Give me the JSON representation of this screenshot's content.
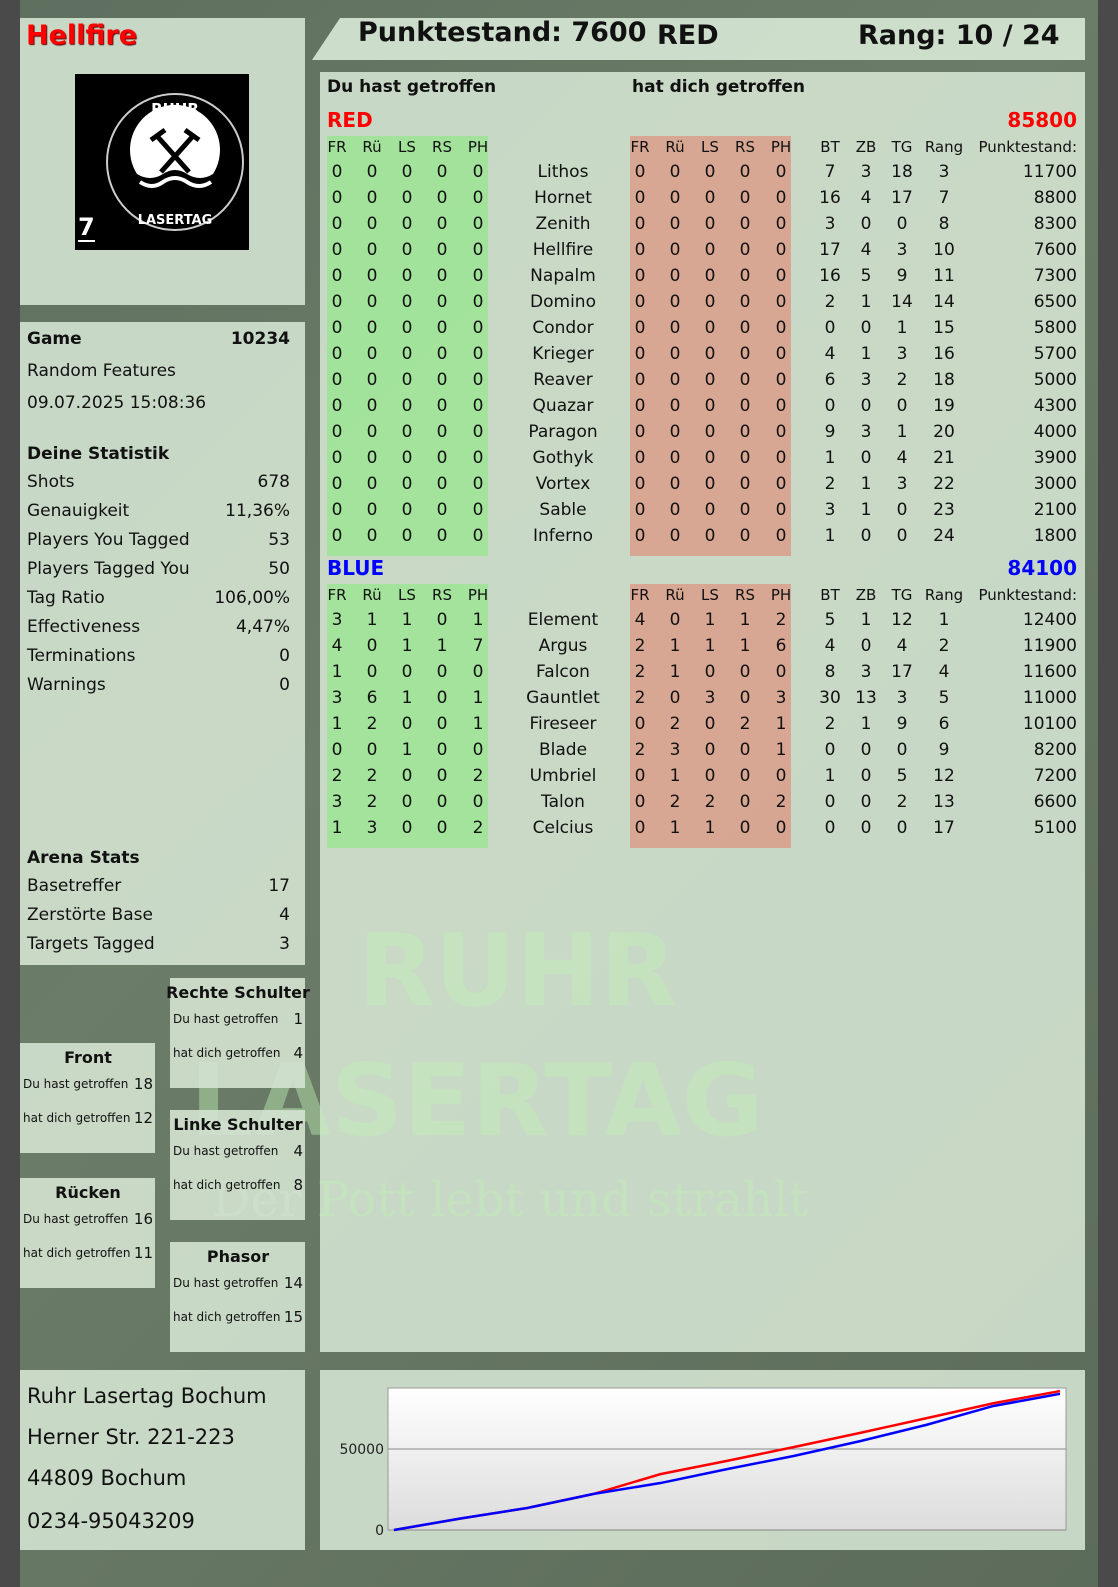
{
  "player": {
    "name": "Hellfire",
    "team_number": "7",
    "logo_text_top": "RUHR",
    "logo_text_bottom": "LASERTAG"
  },
  "header": {
    "score_label": "Punktestand: 7600",
    "team": "RED",
    "rank_label": "Rang: 10 / 24"
  },
  "game": {
    "label": "Game",
    "id": "10234",
    "mode": "Random Features",
    "datetime": "09.07.2025 15:08:36"
  },
  "stats": {
    "title": "Deine Statistik",
    "rows": [
      {
        "label": "Shots",
        "value": "678"
      },
      {
        "label": "Genauigkeit",
        "value": "11,36%"
      },
      {
        "label": "Players You Tagged",
        "value": "53"
      },
      {
        "label": "Players Tagged You",
        "value": "50"
      },
      {
        "label": "Tag Ratio",
        "value": "106,00%"
      },
      {
        "label": "Effectiveness",
        "value": "4,47%"
      },
      {
        "label": "Terminations",
        "value": "0"
      },
      {
        "label": "Warnings",
        "value": "0"
      }
    ]
  },
  "arena": {
    "title": "Arena Stats",
    "rows": [
      {
        "label": "Basetreffer",
        "value": "17"
      },
      {
        "label": "Zerstörte Base",
        "value": "4"
      },
      {
        "label": "Targets Tagged",
        "value": "3"
      }
    ]
  },
  "zones": [
    {
      "title": "Rechte Schulter",
      "you_hit_label": "Du hast getroffen",
      "you_hit": "1",
      "hit_you_label": "hat dich getroffen",
      "hit_you": "4"
    },
    {
      "title": "Front",
      "you_hit_label": "Du hast getroffen",
      "you_hit": "18",
      "hit_you_label": "hat dich getroffen",
      "hit_you": "12"
    },
    {
      "title": "Linke Schulter",
      "you_hit_label": "Du hast getroffen",
      "you_hit": "4",
      "hit_you_label": "hat dich getroffen",
      "hit_you": "8"
    },
    {
      "title": "Rücken",
      "you_hit_label": "Du hast getroffen",
      "you_hit": "16",
      "hit_you_label": "hat dich getroffen",
      "hit_you": "11"
    },
    {
      "title": "Phasor",
      "you_hit_label": "Du hast getroffen",
      "you_hit": "14",
      "hit_you_label": "hat dich getroffen",
      "hit_you": "15"
    }
  ],
  "address": {
    "line1": "Ruhr Lasertag Bochum",
    "line2": "Herner Str. 221-223",
    "line3": "44809 Bochum",
    "phone": "0234-95043209"
  },
  "table": {
    "you_hit_title": "Du hast getroffen",
    "hit_you_title": "hat dich getroffen",
    "hit_columns": [
      "FR",
      "Rü",
      "LS",
      "RS",
      "PH"
    ],
    "stat_columns": [
      "BT",
      "ZB",
      "TG",
      "Rang",
      "Punktestand:"
    ],
    "teams": [
      {
        "name": "RED",
        "total": "85800",
        "color": "#ff0000",
        "players": [
          {
            "name": "Lithos",
            "you_hit": [
              "0",
              "0",
              "0",
              "0",
              "0"
            ],
            "hit_you": [
              "0",
              "0",
              "0",
              "0",
              "0"
            ],
            "stats": [
              "7",
              "3",
              "18",
              "3",
              "11700"
            ]
          },
          {
            "name": "Hornet",
            "you_hit": [
              "0",
              "0",
              "0",
              "0",
              "0"
            ],
            "hit_you": [
              "0",
              "0",
              "0",
              "0",
              "0"
            ],
            "stats": [
              "16",
              "4",
              "17",
              "7",
              "8800"
            ]
          },
          {
            "name": "Zenith",
            "you_hit": [
              "0",
              "0",
              "0",
              "0",
              "0"
            ],
            "hit_you": [
              "0",
              "0",
              "0",
              "0",
              "0"
            ],
            "stats": [
              "3",
              "0",
              "0",
              "8",
              "8300"
            ]
          },
          {
            "name": "Hellfire",
            "you_hit": [
              "0",
              "0",
              "0",
              "0",
              "0"
            ],
            "hit_you": [
              "0",
              "0",
              "0",
              "0",
              "0"
            ],
            "stats": [
              "17",
              "4",
              "3",
              "10",
              "7600"
            ]
          },
          {
            "name": "Napalm",
            "you_hit": [
              "0",
              "0",
              "0",
              "0",
              "0"
            ],
            "hit_you": [
              "0",
              "0",
              "0",
              "0",
              "0"
            ],
            "stats": [
              "16",
              "5",
              "9",
              "11",
              "7300"
            ]
          },
          {
            "name": "Domino",
            "you_hit": [
              "0",
              "0",
              "0",
              "0",
              "0"
            ],
            "hit_you": [
              "0",
              "0",
              "0",
              "0",
              "0"
            ],
            "stats": [
              "2",
              "1",
              "14",
              "14",
              "6500"
            ]
          },
          {
            "name": "Condor",
            "you_hit": [
              "0",
              "0",
              "0",
              "0",
              "0"
            ],
            "hit_you": [
              "0",
              "0",
              "0",
              "0",
              "0"
            ],
            "stats": [
              "0",
              "0",
              "1",
              "15",
              "5800"
            ]
          },
          {
            "name": "Krieger",
            "you_hit": [
              "0",
              "0",
              "0",
              "0",
              "0"
            ],
            "hit_you": [
              "0",
              "0",
              "0",
              "0",
              "0"
            ],
            "stats": [
              "4",
              "1",
              "3",
              "16",
              "5700"
            ]
          },
          {
            "name": "Reaver",
            "you_hit": [
              "0",
              "0",
              "0",
              "0",
              "0"
            ],
            "hit_you": [
              "0",
              "0",
              "0",
              "0",
              "0"
            ],
            "stats": [
              "6",
              "3",
              "2",
              "18",
              "5000"
            ]
          },
          {
            "name": "Quazar",
            "you_hit": [
              "0",
              "0",
              "0",
              "0",
              "0"
            ],
            "hit_you": [
              "0",
              "0",
              "0",
              "0",
              "0"
            ],
            "stats": [
              "0",
              "0",
              "0",
              "19",
              "4300"
            ]
          },
          {
            "name": "Paragon",
            "you_hit": [
              "0",
              "0",
              "0",
              "0",
              "0"
            ],
            "hit_you": [
              "0",
              "0",
              "0",
              "0",
              "0"
            ],
            "stats": [
              "9",
              "3",
              "1",
              "20",
              "4000"
            ]
          },
          {
            "name": "Gothyk",
            "you_hit": [
              "0",
              "0",
              "0",
              "0",
              "0"
            ],
            "hit_you": [
              "0",
              "0",
              "0",
              "0",
              "0"
            ],
            "stats": [
              "1",
              "0",
              "4",
              "21",
              "3900"
            ]
          },
          {
            "name": "Vortex",
            "you_hit": [
              "0",
              "0",
              "0",
              "0",
              "0"
            ],
            "hit_you": [
              "0",
              "0",
              "0",
              "0",
              "0"
            ],
            "stats": [
              "2",
              "1",
              "3",
              "22",
              "3000"
            ]
          },
          {
            "name": "Sable",
            "you_hit": [
              "0",
              "0",
              "0",
              "0",
              "0"
            ],
            "hit_you": [
              "0",
              "0",
              "0",
              "0",
              "0"
            ],
            "stats": [
              "3",
              "1",
              "0",
              "23",
              "2100"
            ]
          },
          {
            "name": "Inferno",
            "you_hit": [
              "0",
              "0",
              "0",
              "0",
              "0"
            ],
            "hit_you": [
              "0",
              "0",
              "0",
              "0",
              "0"
            ],
            "stats": [
              "1",
              "0",
              "0",
              "24",
              "1800"
            ]
          }
        ]
      },
      {
        "name": "BLUE",
        "total": "84100",
        "color": "#0000ff",
        "players": [
          {
            "name": "Element",
            "you_hit": [
              "3",
              "1",
              "1",
              "0",
              "1"
            ],
            "hit_you": [
              "4",
              "0",
              "1",
              "1",
              "2"
            ],
            "stats": [
              "5",
              "1",
              "12",
              "1",
              "12400"
            ]
          },
          {
            "name": "Argus",
            "you_hit": [
              "4",
              "0",
              "1",
              "1",
              "7"
            ],
            "hit_you": [
              "2",
              "1",
              "1",
              "1",
              "6"
            ],
            "stats": [
              "4",
              "0",
              "4",
              "2",
              "11900"
            ]
          },
          {
            "name": "Falcon",
            "you_hit": [
              "1",
              "0",
              "0",
              "0",
              "0"
            ],
            "hit_you": [
              "2",
              "1",
              "0",
              "0",
              "0"
            ],
            "stats": [
              "8",
              "3",
              "17",
              "4",
              "11600"
            ]
          },
          {
            "name": "Gauntlet",
            "you_hit": [
              "3",
              "6",
              "1",
              "0",
              "1"
            ],
            "hit_you": [
              "2",
              "0",
              "3",
              "0",
              "3"
            ],
            "stats": [
              "30",
              "13",
              "3",
              "5",
              "11000"
            ]
          },
          {
            "name": "Fireseer",
            "you_hit": [
              "1",
              "2",
              "0",
              "0",
              "1"
            ],
            "hit_you": [
              "0",
              "2",
              "0",
              "2",
              "1"
            ],
            "stats": [
              "2",
              "1",
              "9",
              "6",
              "10100"
            ]
          },
          {
            "name": "Blade",
            "you_hit": [
              "0",
              "0",
              "1",
              "0",
              "0"
            ],
            "hit_you": [
              "2",
              "3",
              "0",
              "0",
              "1"
            ],
            "stats": [
              "0",
              "0",
              "0",
              "9",
              "8200"
            ]
          },
          {
            "name": "Umbriel",
            "you_hit": [
              "2",
              "2",
              "0",
              "0",
              "2"
            ],
            "hit_you": [
              "0",
              "1",
              "0",
              "0",
              "0"
            ],
            "stats": [
              "1",
              "0",
              "5",
              "12",
              "7200"
            ]
          },
          {
            "name": "Talon",
            "you_hit": [
              "3",
              "2",
              "0",
              "0",
              "0"
            ],
            "hit_you": [
              "0",
              "2",
              "2",
              "0",
              "2"
            ],
            "stats": [
              "0",
              "0",
              "2",
              "13",
              "6600"
            ]
          },
          {
            "name": "Celcius",
            "you_hit": [
              "1",
              "3",
              "0",
              "0",
              "2"
            ],
            "hit_you": [
              "0",
              "1",
              "1",
              "0",
              "0"
            ],
            "stats": [
              "0",
              "0",
              "0",
              "17",
              "5100"
            ]
          }
        ]
      }
    ]
  },
  "watermark": {
    "line1": "RUHR",
    "line2": "LASERTAG",
    "slogan": "Der Pott lebt und strahlt"
  },
  "chart_data": {
    "type": "line",
    "ylim": [
      0,
      87700
    ],
    "yticks": [
      "0",
      "50000"
    ],
    "grid": true,
    "x": [
      0,
      1,
      2,
      3,
      4,
      5,
      6,
      7,
      8,
      9,
      10
    ],
    "series": [
      {
        "color": "#ff0000",
        "values": [
          0,
          7100,
          13600,
          22300,
          34500,
          42700,
          51200,
          60000,
          69100,
          78300,
          85800
        ]
      },
      {
        "color": "#0000ff",
        "values": [
          0,
          7100,
          13600,
          22300,
          29000,
          37600,
          45700,
          54900,
          65000,
          76600,
          84100
        ]
      }
    ]
  }
}
